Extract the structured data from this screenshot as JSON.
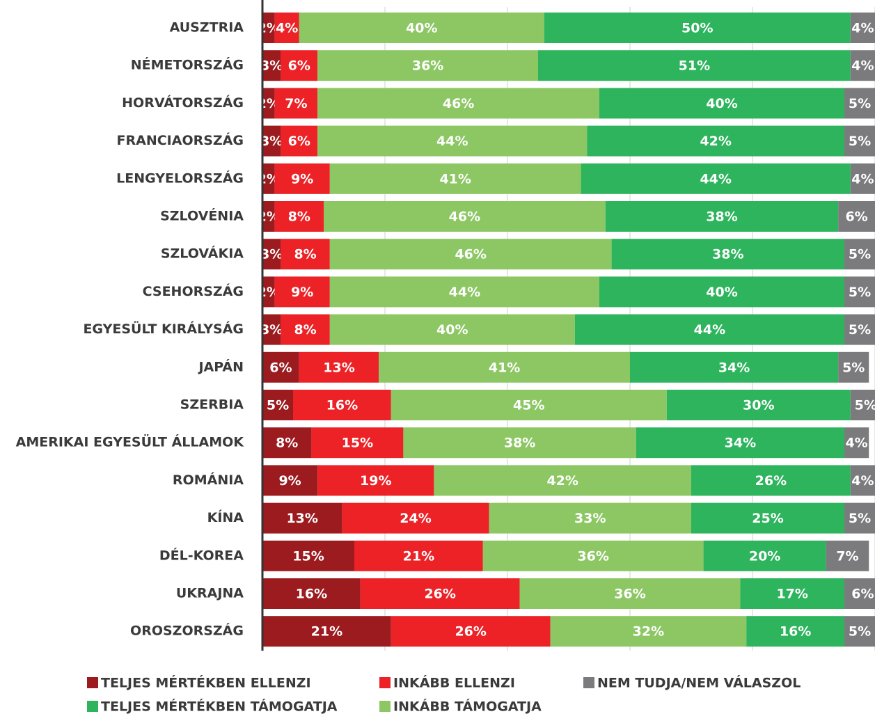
{
  "chart_data": {
    "type": "stacked_barh",
    "categories": [
      "AUSZTRIA",
      "NÉMETORSZÁG",
      "HORVÁTORSZÁG",
      "FRANCIAORSZÁG",
      "LENGYELORSZÁG",
      "SZLOVÉNIA",
      "SZLOVÁKIA",
      "CSEHORSZÁG",
      "EGYESÜLT KIRÁLYSÁG",
      "JAPÁN",
      "SZERBIA",
      "AMERIKAI EGYESÜLT ÁLLAMOK",
      "ROMÁNIA",
      "KÍNA",
      "DÉL-KOREA",
      "UKRAJNA",
      "OROSZORSZÁG"
    ],
    "series": [
      {
        "name": "TELJES MÉRTÉKBEN ELLENZI",
        "color": "#9b1b1f",
        "values": [
          2,
          3,
          2,
          3,
          2,
          2,
          3,
          2,
          3,
          6,
          5,
          8,
          9,
          13,
          15,
          16,
          21
        ],
        "value_labels": [
          "2%",
          "3%",
          "2%",
          "3%",
          "2%",
          "2%",
          "3%",
          "2%",
          "3%",
          "6%",
          "5%",
          "8%",
          "9%",
          "13%",
          "15%",
          "16%",
          "21%"
        ]
      },
      {
        "name": "INKÁBB ELLENZI",
        "color": "#ec2227",
        "values": [
          4,
          6,
          7,
          6,
          9,
          8,
          8,
          9,
          8,
          13,
          16,
          15,
          19,
          24,
          21,
          26,
          26
        ],
        "value_labels": [
          "4%",
          "6%",
          "7%",
          "6%",
          "9%",
          "8%",
          "8%",
          "9%",
          "8%",
          "13%",
          "16%",
          "15%",
          "19%",
          "24%",
          "21%",
          "26%",
          "26%"
        ]
      },
      {
        "name": "INKÁBB TÁMOGATJA",
        "color": "#8cc764",
        "values": [
          40,
          36,
          46,
          44,
          41,
          46,
          46,
          44,
          40,
          41,
          45,
          38,
          42,
          33,
          36,
          36,
          32
        ],
        "value_labels": [
          "40%",
          "36%",
          "46%",
          "44%",
          "41%",
          "46%",
          "46%",
          "44%",
          "40%",
          "41%",
          "45%",
          "38%",
          "42%",
          "33%",
          "36%",
          "36%",
          "32%"
        ]
      },
      {
        "name": "TELJES MÉRTÉKBEN TÁMOGATJA",
        "color": "#2db45d",
        "values": [
          50,
          51,
          40,
          42,
          44,
          38,
          38,
          40,
          44,
          34,
          30,
          34,
          26,
          25,
          20,
          17,
          16
        ],
        "value_labels": [
          "50%",
          "51%",
          "40%",
          "42%",
          "44%",
          "38%",
          "38%",
          "40%",
          "44%",
          "34%",
          "30%",
          "34%",
          "26%",
          "25%",
          "20%",
          "17%",
          "16%"
        ]
      },
      {
        "name": "NEM TUDJA/NEM VÁLASZOL",
        "color": "#7b7b7d",
        "values": [
          4,
          4,
          5,
          5,
          4,
          6,
          5,
          5,
          5,
          5,
          5,
          4,
          4,
          5,
          7,
          6,
          5
        ],
        "value_labels": [
          "4%",
          "4%",
          "5%",
          "5%",
          "4%",
          "6%",
          "5%",
          "5%",
          "5%",
          "5%",
          "5%",
          "4%",
          "4%",
          "5%",
          "7%",
          "6%",
          "5%"
        ]
      }
    ],
    "xlim": [
      0,
      100
    ],
    "xticks": [
      0,
      20,
      40,
      60,
      80,
      100
    ],
    "grid": true
  }
}
